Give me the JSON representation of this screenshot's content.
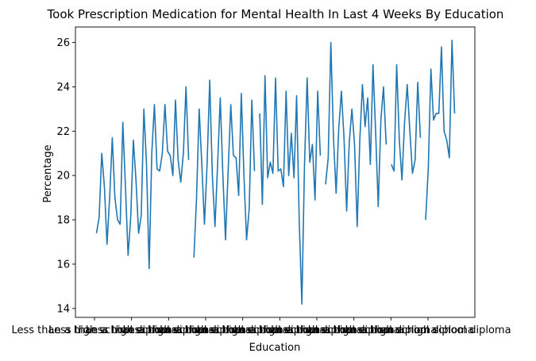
{
  "chart_data": {
    "type": "line",
    "title": "Took Prescription Medication for Mental Health In Last 4 Weeks By Education",
    "xlabel": "Education",
    "ylabel": "Percentage",
    "ylim": [
      13.6,
      26.7
    ],
    "yticks": [
      14,
      16,
      18,
      20,
      22,
      24,
      26
    ],
    "grid": false,
    "legend": "none",
    "x_tick_labels": [
      "Less than a high school diploma",
      "Less than a high school diploma",
      "Less than a high school diploma",
      "Less than a high school diploma",
      "Less than a high school diploma",
      "Less than a high school diploma",
      "Less than a high school diploma",
      "Less than a high school diploma",
      "Less than a high school diploma",
      "Less than a high school diploma"
    ],
    "series": [
      {
        "color": "#1f77b4",
        "segments": [
          [
            17.4,
            18.1,
            21.0,
            19.5,
            16.9,
            19.0,
            21.7,
            19.0,
            18.0,
            17.8,
            22.4,
            19.5,
            16.4,
            18.1,
            21.6,
            19.8,
            17.4,
            18.2,
            23.0,
            20.5,
            15.8,
            21.0,
            23.2,
            20.3,
            20.2,
            21.0,
            23.2,
            21.1,
            20.9,
            20.0,
            23.4,
            20.7,
            19.7,
            21.0,
            24.0,
            20.7
          ],
          [
            16.3,
            19.0,
            23.0,
            20.5,
            17.8,
            20.5,
            24.3,
            20.0,
            17.7,
            20.5,
            23.5,
            20.0,
            17.1,
            20.2,
            23.2,
            20.9,
            20.8,
            19.1,
            23.7,
            20.0,
            17.1,
            18.5,
            23.4,
            20.2
          ],
          [
            22.8,
            18.7,
            24.5,
            19.9,
            20.6,
            20.1,
            24.4,
            20.2,
            20.3,
            19.5,
            23.8,
            20.0,
            21.9,
            19.9,
            23.6,
            17.9,
            14.2,
            20.5,
            24.4,
            20.6,
            21.4,
            18.9,
            23.8,
            20.9
          ],
          [
            19.6,
            20.8,
            26.0,
            21.7,
            19.2,
            22.1,
            23.8,
            21.7,
            18.4,
            21.5,
            23.0,
            21.4,
            17.7,
            21.6,
            24.1,
            22.2,
            23.5,
            20.5,
            25.0,
            22.0,
            18.6,
            22.5,
            24.0,
            21.4
          ],
          [
            20.5,
            20.2,
            25.0,
            21.6,
            19.8,
            22.4,
            24.1,
            22.0,
            20.1,
            20.7,
            24.2,
            21.7
          ],
          [
            18.0,
            20.3,
            24.8,
            22.5,
            22.8,
            22.8,
            25.8,
            22.0,
            21.6,
            20.8,
            26.1,
            22.8
          ]
        ]
      }
    ]
  }
}
